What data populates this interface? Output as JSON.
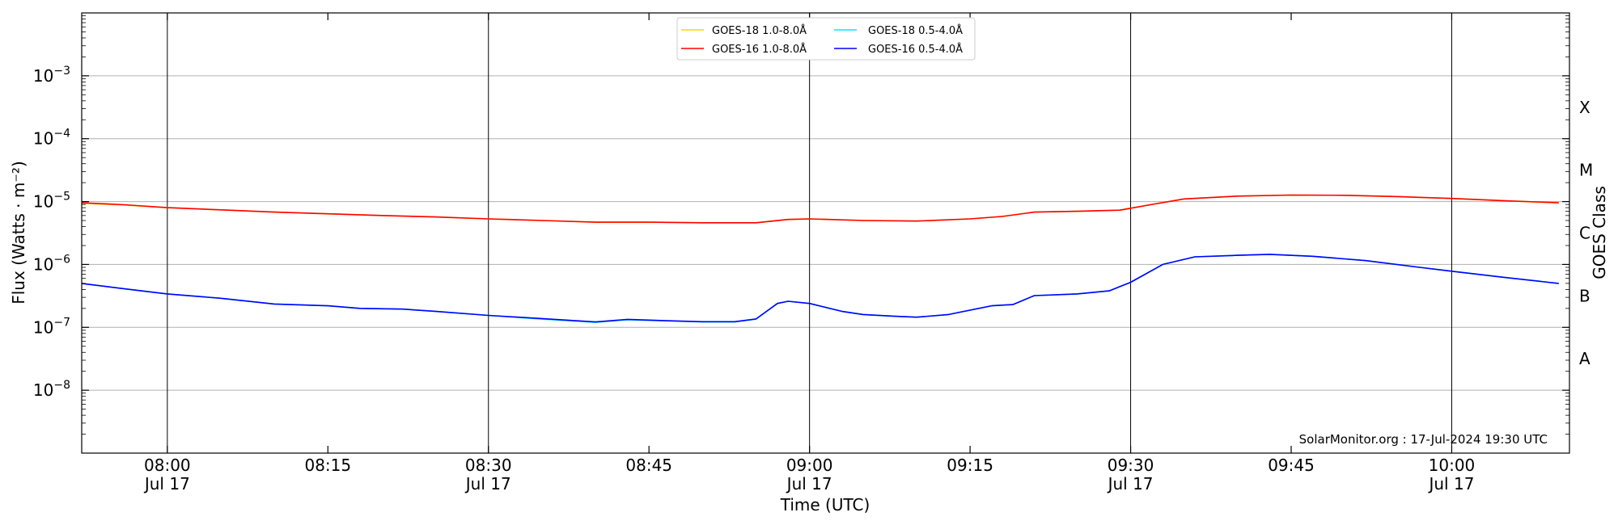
{
  "chart_data": {
    "type": "line",
    "xlabel": "Time (UTC)",
    "ylabel": "Flux (Watts · m⁻²)",
    "ylabel_right": "GOES Class",
    "x_range": [
      "07:52",
      "10:11"
    ],
    "y_scale": "log",
    "y_range": [
      1e-09,
      0.01
    ],
    "y_ticks": [
      {
        "value": 1e-08,
        "base": "10",
        "exp": "−8"
      },
      {
        "value": 1e-07,
        "base": "10",
        "exp": "−7"
      },
      {
        "value": 1e-06,
        "base": "10",
        "exp": "−6"
      },
      {
        "value": 1e-05,
        "base": "10",
        "exp": "−5"
      },
      {
        "value": 0.0001,
        "base": "10",
        "exp": "−4"
      },
      {
        "value": 0.001,
        "base": "10",
        "exp": "−3"
      }
    ],
    "x_ticks": [
      {
        "t": "08:00",
        "line1": "08:00",
        "line2": "Jul 17",
        "vline": true
      },
      {
        "t": "08:15",
        "line1": "08:15",
        "line2": "",
        "vline": false
      },
      {
        "t": "08:30",
        "line1": "08:30",
        "line2": "Jul 17",
        "vline": true
      },
      {
        "t": "08:45",
        "line1": "08:45",
        "line2": "",
        "vline": false
      },
      {
        "t": "09:00",
        "line1": "09:00",
        "line2": "Jul 17",
        "vline": true
      },
      {
        "t": "09:15",
        "line1": "09:15",
        "line2": "",
        "vline": false
      },
      {
        "t": "09:30",
        "line1": "09:30",
        "line2": "Jul 17",
        "vline": true
      },
      {
        "t": "09:45",
        "line1": "09:45",
        "line2": "",
        "vline": false
      },
      {
        "t": "10:00",
        "line1": "10:00",
        "line2": "Jul 17",
        "vline": true
      }
    ],
    "goes_classes": [
      {
        "label": "A",
        "value": 3.16e-08
      },
      {
        "label": "B",
        "value": 3.16e-07
      },
      {
        "label": "C",
        "value": 3.16e-06
      },
      {
        "label": "M",
        "value": 3.16e-05
      },
      {
        "label": "X",
        "value": 0.000316
      }
    ],
    "grid": "horizontal",
    "legend_position": "top-center",
    "legend": [
      {
        "name": "GOES-18 1.0-8.0Å",
        "color": "#ffd700"
      },
      {
        "name": "GOES-18 0.5-4.0Å",
        "color": "#00e5ff"
      },
      {
        "name": "GOES-16 1.0-8.0Å",
        "color": "#ff0000"
      },
      {
        "name": "GOES-16 0.5-4.0Å",
        "color": "#0000ff"
      }
    ],
    "credit": "SolarMonitor.org : 17-Jul-2024 19:30 UTC",
    "series": [
      {
        "name": "GOES-18 1.0-8.0Å",
        "color": "#ffd700",
        "points": [
          [
            "07:52",
            9.4e-06
          ],
          [
            "07:56",
            8.8e-06
          ],
          [
            "08:00",
            8e-06
          ],
          [
            "08:05",
            7.4e-06
          ],
          [
            "08:10",
            6.8e-06
          ],
          [
            "08:15",
            6.4e-06
          ],
          [
            "08:20",
            6e-06
          ],
          [
            "08:25",
            5.7e-06
          ],
          [
            "08:30",
            5.3e-06
          ],
          [
            "08:35",
            5e-06
          ],
          [
            "08:40",
            4.7e-06
          ],
          [
            "08:45",
            4.7e-06
          ],
          [
            "08:50",
            4.6e-06
          ],
          [
            "08:55",
            4.6e-06
          ],
          [
            "08:58",
            5.2e-06
          ],
          [
            "09:00",
            5.3e-06
          ],
          [
            "09:05",
            5e-06
          ],
          [
            "09:10",
            4.9e-06
          ],
          [
            "09:15",
            5.3e-06
          ],
          [
            "09:18",
            5.8e-06
          ],
          [
            "09:21",
            6.8e-06
          ],
          [
            "09:25",
            7e-06
          ],
          [
            "09:29",
            7.3e-06
          ],
          [
            "09:32",
            9e-06
          ],
          [
            "09:35",
            1.1e-05
          ],
          [
            "09:40",
            1.22e-05
          ],
          [
            "09:45",
            1.27e-05
          ],
          [
            "09:50",
            1.26e-05
          ],
          [
            "09:55",
            1.2e-05
          ],
          [
            "10:00",
            1.12e-05
          ],
          [
            "10:05",
            1.03e-05
          ],
          [
            "10:10",
            9.5e-06
          ]
        ]
      },
      {
        "name": "GOES-18 0.5-4.0Å",
        "color": "#00e5ff",
        "points": [
          [
            "07:52",
            5e-07
          ],
          [
            "07:56",
            4.1e-07
          ],
          [
            "08:00",
            3.4e-07
          ],
          [
            "08:05",
            2.9e-07
          ],
          [
            "08:10",
            2.35e-07
          ],
          [
            "08:15",
            2.2e-07
          ],
          [
            "08:18",
            2e-07
          ],
          [
            "08:22",
            1.95e-07
          ],
          [
            "08:25",
            1.8e-07
          ],
          [
            "08:30",
            1.55e-07
          ],
          [
            "08:35",
            1.35e-07
          ],
          [
            "08:40",
            1.2e-07
          ],
          [
            "08:43",
            1.32e-07
          ],
          [
            "08:47",
            1.26e-07
          ],
          [
            "08:50",
            1.22e-07
          ],
          [
            "08:53",
            1.22e-07
          ],
          [
            "08:55",
            1.35e-07
          ],
          [
            "08:57",
            2.4e-07
          ],
          [
            "08:58",
            2.6e-07
          ],
          [
            "09:00",
            2.4e-07
          ],
          [
            "09:03",
            1.8e-07
          ],
          [
            "09:05",
            1.6e-07
          ],
          [
            "09:08",
            1.5e-07
          ],
          [
            "09:10",
            1.45e-07
          ],
          [
            "09:13",
            1.6e-07
          ],
          [
            "09:17",
            2.2e-07
          ],
          [
            "09:19",
            2.3e-07
          ],
          [
            "09:21",
            3.2e-07
          ],
          [
            "09:25",
            3.4e-07
          ],
          [
            "09:28",
            3.8e-07
          ],
          [
            "09:30",
            5.2e-07
          ],
          [
            "09:33",
            1e-06
          ],
          [
            "09:36",
            1.32e-06
          ],
          [
            "09:40",
            1.4e-06
          ],
          [
            "09:43",
            1.45e-06
          ],
          [
            "09:47",
            1.35e-06
          ],
          [
            "09:52",
            1.15e-06
          ],
          [
            "09:57",
            9e-07
          ],
          [
            "10:00",
            7.8e-07
          ],
          [
            "10:05",
            6.2e-07
          ],
          [
            "10:10",
            5e-07
          ]
        ]
      },
      {
        "name": "GOES-16 1.0-8.0Å",
        "color": "#ff0000",
        "points": [
          [
            "07:52",
            9.6e-06
          ],
          [
            "07:56",
            8.9e-06
          ],
          [
            "08:00",
            8e-06
          ],
          [
            "08:05",
            7.4e-06
          ],
          [
            "08:10",
            6.8e-06
          ],
          [
            "08:15",
            6.4e-06
          ],
          [
            "08:20",
            6e-06
          ],
          [
            "08:25",
            5.7e-06
          ],
          [
            "08:30",
            5.3e-06
          ],
          [
            "08:35",
            5e-06
          ],
          [
            "08:40",
            4.7e-06
          ],
          [
            "08:45",
            4.7e-06
          ],
          [
            "08:50",
            4.6e-06
          ],
          [
            "08:55",
            4.6e-06
          ],
          [
            "08:58",
            5.2e-06
          ],
          [
            "09:00",
            5.3e-06
          ],
          [
            "09:05",
            5e-06
          ],
          [
            "09:10",
            4.9e-06
          ],
          [
            "09:15",
            5.3e-06
          ],
          [
            "09:18",
            5.8e-06
          ],
          [
            "09:21",
            6.8e-06
          ],
          [
            "09:25",
            7e-06
          ],
          [
            "09:29",
            7.3e-06
          ],
          [
            "09:32",
            9e-06
          ],
          [
            "09:35",
            1.1e-05
          ],
          [
            "09:40",
            1.22e-05
          ],
          [
            "09:45",
            1.27e-05
          ],
          [
            "09:50",
            1.26e-05
          ],
          [
            "09:55",
            1.2e-05
          ],
          [
            "10:00",
            1.12e-05
          ],
          [
            "10:05",
            1.03e-05
          ],
          [
            "10:10",
            9.6e-06
          ]
        ]
      },
      {
        "name": "GOES-16 0.5-4.0Å",
        "color": "#0000ff",
        "points": [
          [
            "07:52",
            5e-07
          ],
          [
            "07:56",
            4.1e-07
          ],
          [
            "08:00",
            3.4e-07
          ],
          [
            "08:05",
            2.9e-07
          ],
          [
            "08:10",
            2.35e-07
          ],
          [
            "08:15",
            2.2e-07
          ],
          [
            "08:18",
            2e-07
          ],
          [
            "08:22",
            1.95e-07
          ],
          [
            "08:25",
            1.8e-07
          ],
          [
            "08:30",
            1.55e-07
          ],
          [
            "08:35",
            1.38e-07
          ],
          [
            "08:40",
            1.22e-07
          ],
          [
            "08:43",
            1.34e-07
          ],
          [
            "08:47",
            1.27e-07
          ],
          [
            "08:50",
            1.23e-07
          ],
          [
            "08:53",
            1.23e-07
          ],
          [
            "08:55",
            1.36e-07
          ],
          [
            "08:57",
            2.4e-07
          ],
          [
            "08:58",
            2.6e-07
          ],
          [
            "09:00",
            2.4e-07
          ],
          [
            "09:03",
            1.8e-07
          ],
          [
            "09:05",
            1.6e-07
          ],
          [
            "09:08",
            1.5e-07
          ],
          [
            "09:10",
            1.45e-07
          ],
          [
            "09:13",
            1.6e-07
          ],
          [
            "09:17",
            2.2e-07
          ],
          [
            "09:19",
            2.3e-07
          ],
          [
            "09:21",
            3.2e-07
          ],
          [
            "09:25",
            3.4e-07
          ],
          [
            "09:28",
            3.8e-07
          ],
          [
            "09:30",
            5.2e-07
          ],
          [
            "09:33",
            1e-06
          ],
          [
            "09:36",
            1.32e-06
          ],
          [
            "09:40",
            1.4e-06
          ],
          [
            "09:43",
            1.45e-06
          ],
          [
            "09:47",
            1.35e-06
          ],
          [
            "09:52",
            1.15e-06
          ],
          [
            "09:57",
            9e-07
          ],
          [
            "10:00",
            7.8e-07
          ],
          [
            "10:05",
            6.2e-07
          ],
          [
            "10:10",
            5e-07
          ]
        ]
      }
    ]
  }
}
